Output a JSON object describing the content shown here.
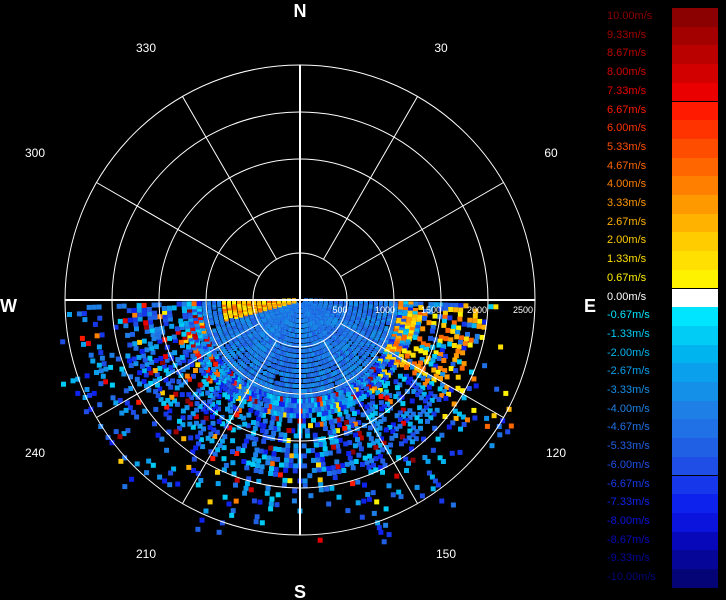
{
  "compass": {
    "north": "N",
    "south": "S",
    "east": "E",
    "west": "W",
    "degrees": {
      "d30": "30",
      "d60": "60",
      "d120": "120",
      "d150": "150",
      "d210": "210",
      "d240": "240",
      "d300": "300",
      "d330": "330"
    }
  },
  "range_labels": [
    "500",
    "1000",
    "1500",
    "2000",
    "2500"
  ],
  "legend": {
    "items": [
      {
        "label": "10.00m/s",
        "color": "#8b0000"
      },
      {
        "label": "9.33m/s",
        "color": "#a30000"
      },
      {
        "label": "8.67m/s",
        "color": "#bb0000"
      },
      {
        "label": "8.00m/s",
        "color": "#d30000"
      },
      {
        "label": "7.33m/s",
        "color": "#ea0000"
      },
      {
        "label": "6.67m/s",
        "color": "#ff1a00"
      },
      {
        "label": "6.00m/s",
        "color": "#ff3300"
      },
      {
        "label": "5.33m/s",
        "color": "#ff4d00"
      },
      {
        "label": "4.67m/s",
        "color": "#ff6600"
      },
      {
        "label": "4.00m/s",
        "color": "#ff7f00"
      },
      {
        "label": "3.33m/s",
        "color": "#ff9900"
      },
      {
        "label": "2.67m/s",
        "color": "#ffb200"
      },
      {
        "label": "2.00m/s",
        "color": "#ffcc00"
      },
      {
        "label": "1.33m/s",
        "color": "#ffe000"
      },
      {
        "label": "0.67m/s",
        "color": "#fff200"
      },
      {
        "label": "0.00m/s",
        "color": "#ffffff"
      },
      {
        "label": "-0.67m/s",
        "color": "#00e5ff"
      },
      {
        "label": "-1.33m/s",
        "color": "#00ccf5"
      },
      {
        "label": "-2.00m/s",
        "color": "#00b4f0"
      },
      {
        "label": "-2.67m/s",
        "color": "#0aa0ec"
      },
      {
        "label": "-3.33m/s",
        "color": "#1590e8"
      },
      {
        "label": "-4.00m/s",
        "color": "#1e80e6"
      },
      {
        "label": "-4.67m/s",
        "color": "#2070e6"
      },
      {
        "label": "-5.33m/s",
        "color": "#2060e4"
      },
      {
        "label": "-6.00m/s",
        "color": "#1e4ee6"
      },
      {
        "label": "-6.67m/s",
        "color": "#1638ea"
      },
      {
        "label": "-7.33m/s",
        "color": "#0e22ee"
      },
      {
        "label": "-8.00m/s",
        "color": "#0a14dd"
      },
      {
        "label": "-8.67m/s",
        "color": "#0808bb"
      },
      {
        "label": "-9.33m/s",
        "color": "#060699"
      },
      {
        "label": "-10.00m/s",
        "color": "#040477"
      }
    ]
  }
}
